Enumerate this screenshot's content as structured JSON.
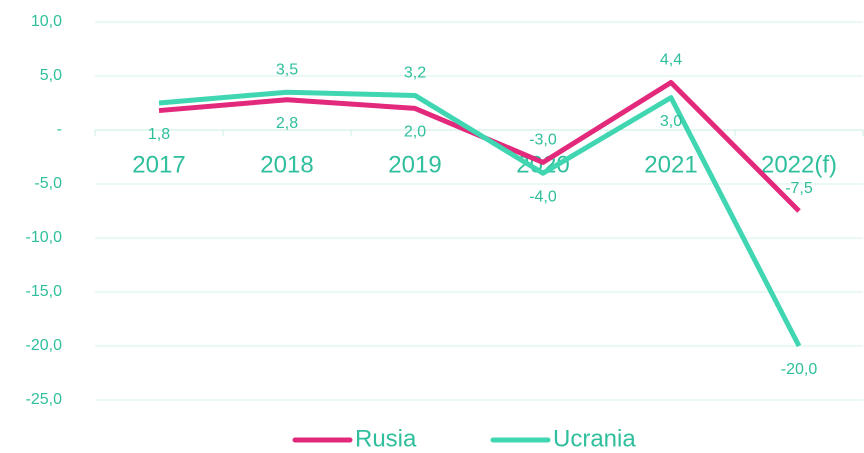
{
  "chart_data": {
    "type": "line",
    "categories": [
      "2017",
      "2018",
      "2019",
      "2020",
      "2021",
      "2022(f)"
    ],
    "series": [
      {
        "name": "Rusia",
        "color": "#e2297b",
        "values": [
          1.8,
          2.8,
          2.0,
          -3.0,
          4.4,
          -7.5
        ],
        "value_labels": [
          "1,8",
          "2,8",
          "2,0",
          "-3,0",
          "4,4",
          "-7,5"
        ]
      },
      {
        "name": "Ucrania",
        "color": "#3fd6b1",
        "values": [
          2.5,
          3.5,
          3.2,
          -4.0,
          3.0,
          -20.0
        ],
        "value_labels": [
          null,
          "3,5",
          "3,2",
          "-4,0",
          "3,0",
          "-20,0"
        ]
      }
    ],
    "ylim": [
      -25,
      10
    ],
    "yticks": [
      {
        "value": -25,
        "label": "-25,0"
      },
      {
        "value": -20,
        "label": "-20,0"
      },
      {
        "value": -15,
        "label": "-15,0"
      },
      {
        "value": -10,
        "label": "-10,0"
      },
      {
        "value": -5,
        "label": "-5,0"
      },
      {
        "value": 0,
        "label": "-"
      },
      {
        "value": 5,
        "label": "5,0"
      },
      {
        "value": 10,
        "label": "10,0"
      }
    ],
    "grid": true,
    "legend": "bottom"
  }
}
